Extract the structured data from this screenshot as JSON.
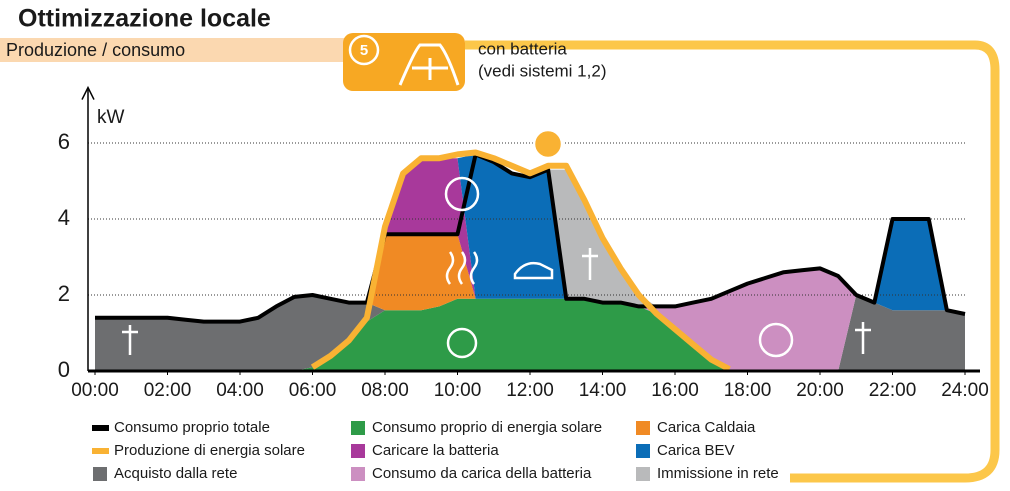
{
  "chart_data": {
    "type": "area",
    "title": "Ottimizzazione locale",
    "subtitle": "Produzione / consumo",
    "badge": "5",
    "note": [
      "con batteria",
      "(vedi sistemi 1,2)"
    ],
    "ylabel": "kW",
    "x": [
      0,
      0.5,
      1,
      1.5,
      2,
      2.5,
      3,
      3.5,
      4,
      4.5,
      5,
      5.5,
      6,
      6.5,
      7,
      7.5,
      8,
      8.5,
      9,
      9.5,
      10,
      10.5,
      11,
      11.5,
      12,
      12.5,
      13,
      13.5,
      14,
      14.5,
      15,
      15.5,
      16,
      16.5,
      17,
      17.5,
      18,
      18.5,
      19,
      19.5,
      20,
      20.5,
      21,
      21.5,
      22,
      22.5,
      23,
      23.5,
      24
    ],
    "xlim": [
      0,
      24
    ],
    "xticks": [
      {
        "value": 0,
        "label": "00:00"
      },
      {
        "value": 2,
        "label": "02:00"
      },
      {
        "value": 4,
        "label": "04:00"
      },
      {
        "value": 6,
        "label": "06:00"
      },
      {
        "value": 8,
        "label": "08:00"
      },
      {
        "value": 10,
        "label": "10:00"
      },
      {
        "value": 12,
        "label": "12:00"
      },
      {
        "value": 14,
        "label": "14:00"
      },
      {
        "value": 16,
        "label": "16:00"
      },
      {
        "value": 18,
        "label": "18:00"
      },
      {
        "value": 20,
        "label": "20:00"
      },
      {
        "value": 22,
        "label": "22:00"
      },
      {
        "value": 24,
        "label": "24:00"
      }
    ],
    "ylim": [
      0,
      7.3
    ],
    "yticks": [
      0,
      2,
      4,
      6
    ],
    "grid": true,
    "stacked": true,
    "series": [
      {
        "name": "Consumo proprio di energia solare",
        "type": "area",
        "color": "#2e9b48",
        "values": [
          0,
          0,
          0,
          0,
          0,
          0,
          0,
          0,
          0,
          0,
          0,
          0,
          0.1,
          0.4,
          0.8,
          1.3,
          1.6,
          1.6,
          1.6,
          1.7,
          1.9,
          1.9,
          1.9,
          1.9,
          1.9,
          1.9,
          1.9,
          1.9,
          1.8,
          1.8,
          1.7,
          1.5,
          1.1,
          0.7,
          0.3,
          0,
          0,
          0,
          0,
          0,
          0,
          0,
          0,
          0,
          0,
          0,
          0,
          0,
          0
        ]
      },
      {
        "name": "Acquisto dalla rete",
        "type": "area",
        "color": "#6d6e70",
        "values": [
          1.4,
          1.4,
          1.4,
          1.4,
          1.4,
          1.35,
          1.3,
          1.3,
          1.3,
          1.4,
          1.7,
          1.95,
          1.9,
          1.5,
          1.0,
          0.5,
          0,
          0,
          0,
          0,
          0,
          0,
          0,
          0,
          0,
          0,
          0,
          0,
          0,
          0,
          0,
          0,
          0,
          0,
          0,
          0,
          0,
          0,
          0,
          0,
          0,
          0,
          2.0,
          1.8,
          1.6,
          1.6,
          1.6,
          1.6,
          1.5
        ]
      },
      {
        "name": "Consumo da carica della batteria",
        "type": "area",
        "color": "#cc8fc1",
        "values": [
          0,
          0,
          0,
          0,
          0,
          0,
          0,
          0,
          0,
          0,
          0,
          0,
          0,
          0,
          0,
          0,
          0,
          0,
          0,
          0,
          0,
          0,
          0,
          0,
          0,
          0,
          0,
          0,
          0,
          0,
          0,
          0.2,
          0.6,
          1.1,
          1.6,
          2.1,
          2.3,
          2.45,
          2.6,
          2.65,
          2.7,
          2.5,
          0,
          0,
          0,
          0,
          0,
          0,
          0
        ]
      },
      {
        "name": "Carica Caldaia",
        "type": "area",
        "color": "#f08a24",
        "values": [
          0,
          0,
          0,
          0,
          0,
          0,
          0,
          0,
          0,
          0,
          0,
          0,
          0,
          0,
          0,
          0,
          2.0,
          2.0,
          2.0,
          1.9,
          1.7,
          0,
          0,
          0,
          0,
          0,
          0,
          0,
          0,
          0,
          0,
          0,
          0,
          0,
          0,
          0,
          0,
          0,
          0,
          0,
          0,
          0,
          0,
          0,
          0,
          0,
          0,
          0,
          0
        ]
      },
      {
        "name": "Caricare la batteria",
        "type": "area",
        "color": "#a8399b",
        "values": [
          0,
          0,
          0,
          0,
          0,
          0,
          0,
          0,
          0,
          0,
          0,
          0,
          0,
          0,
          0,
          0,
          0.2,
          1.6,
          2.0,
          2.0,
          2.0,
          0,
          0,
          0,
          0,
          0,
          0,
          0,
          0,
          0,
          0,
          0,
          0,
          0,
          0,
          0,
          0,
          0,
          0,
          0,
          0,
          0,
          0,
          0,
          0,
          0,
          0,
          0,
          0
        ]
      },
      {
        "name": "Carica BEV",
        "type": "area",
        "color": "#0b6db7",
        "values": [
          0,
          0,
          0,
          0,
          0,
          0,
          0,
          0,
          0,
          0,
          0,
          0,
          0,
          0,
          0,
          0,
          0,
          0,
          0,
          0,
          0,
          3.8,
          3.6,
          3.3,
          3.2,
          3.4,
          0,
          0,
          0,
          0,
          0,
          0,
          0,
          0,
          0,
          0,
          0,
          0,
          0,
          0,
          0,
          0,
          0,
          0,
          2.4,
          2.4,
          2.4,
          0,
          0
        ]
      },
      {
        "name": "Immissione in rete",
        "type": "area",
        "color": "#b9babb",
        "values": [
          0,
          0,
          0,
          0,
          0,
          0,
          0,
          0,
          0,
          0,
          0,
          0,
          0,
          0,
          0,
          0,
          0,
          0,
          0,
          0,
          0,
          0,
          0,
          0,
          0,
          0,
          3.4,
          2.6,
          1.7,
          0.9,
          0.3,
          0,
          0,
          0,
          0,
          0,
          0,
          0,
          0,
          0,
          0,
          0,
          0,
          0,
          0,
          0,
          0,
          0,
          0
        ]
      },
      {
        "name": "Consumo proprio totale",
        "type": "line",
        "color": "#000000",
        "values": [
          1.4,
          1.4,
          1.4,
          1.4,
          1.4,
          1.35,
          1.3,
          1.3,
          1.3,
          1.4,
          1.7,
          1.95,
          2.0,
          1.9,
          1.8,
          1.8,
          3.6,
          3.6,
          3.6,
          3.6,
          3.6,
          5.7,
          5.5,
          5.2,
          5.1,
          5.3,
          1.9,
          1.9,
          1.8,
          1.8,
          1.7,
          1.7,
          1.7,
          1.8,
          1.9,
          2.1,
          2.3,
          2.45,
          2.6,
          2.65,
          2.7,
          2.5,
          2.0,
          1.8,
          4.0,
          4.0,
          4.0,
          1.6,
          1.5
        ]
      },
      {
        "name": "Produzione di energia solare",
        "type": "line",
        "color": "#f9b233",
        "values": [
          null,
          null,
          null,
          null,
          null,
          null,
          null,
          null,
          null,
          null,
          null,
          null,
          0.1,
          0.4,
          0.8,
          1.4,
          3.8,
          5.2,
          5.6,
          5.6,
          5.7,
          5.75,
          5.6,
          5.4,
          5.2,
          5.4,
          5.4,
          4.5,
          3.5,
          2.7,
          2.0,
          1.5,
          1.1,
          0.7,
          0.3,
          0.05,
          null,
          null,
          null,
          null,
          null,
          null,
          null,
          null,
          null,
          null,
          null,
          null,
          null
        ]
      }
    ]
  }
}
